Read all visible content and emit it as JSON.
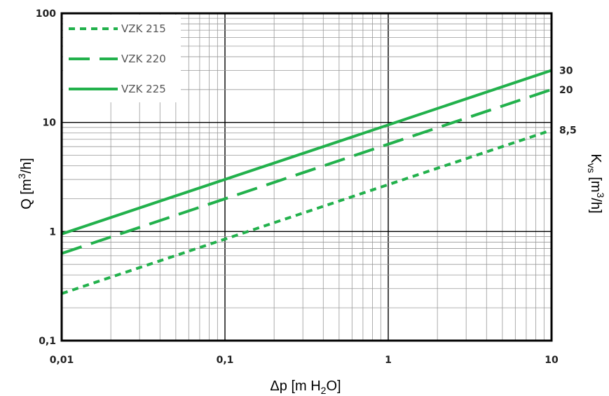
{
  "chart_data": {
    "type": "line",
    "xscale": "log",
    "yscale": "log",
    "xlim": [
      0.01,
      10
    ],
    "ylim": [
      0.1,
      100
    ],
    "grid": true,
    "legend_position": "top-left",
    "colors": {
      "series": "#22b14c",
      "grid_major": "#000000",
      "grid_minor": "#999999",
      "frame": "#000000"
    },
    "xticks": [
      {
        "value": 0.01,
        "label": "0,01"
      },
      {
        "value": 0.1,
        "label": "0,1"
      },
      {
        "value": 1,
        "label": "1"
      },
      {
        "value": 10,
        "label": "10"
      }
    ],
    "yticks": [
      {
        "value": 0.1,
        "label": "0,1"
      },
      {
        "value": 1,
        "label": "1"
      },
      {
        "value": 10,
        "label": "10"
      },
      {
        "value": 100,
        "label": "100"
      }
    ],
    "xlabel": {
      "main": "Δp [m H",
      "sub": "2",
      "tail": "O]"
    },
    "ylabel": {
      "main": "Q [m",
      "sup": "3",
      "tail": "/h]"
    },
    "y2label": {
      "k": "K",
      "sub": "vs",
      "mid": " [m",
      "sup": "3",
      "tail": "/h]"
    },
    "series": [
      {
        "name": "VZK 215",
        "dash": "short",
        "kvs_label": "8,5",
        "x": [
          0.01,
          10
        ],
        "y": [
          0.27,
          8.5
        ]
      },
      {
        "name": "VZK 220",
        "dash": "long",
        "kvs_label": "20",
        "x": [
          0.01,
          10
        ],
        "y": [
          0.63,
          20
        ]
      },
      {
        "name": "VZK 225",
        "dash": "solid",
        "kvs_label": "30",
        "x": [
          0.01,
          10
        ],
        "y": [
          0.95,
          30
        ]
      }
    ]
  }
}
